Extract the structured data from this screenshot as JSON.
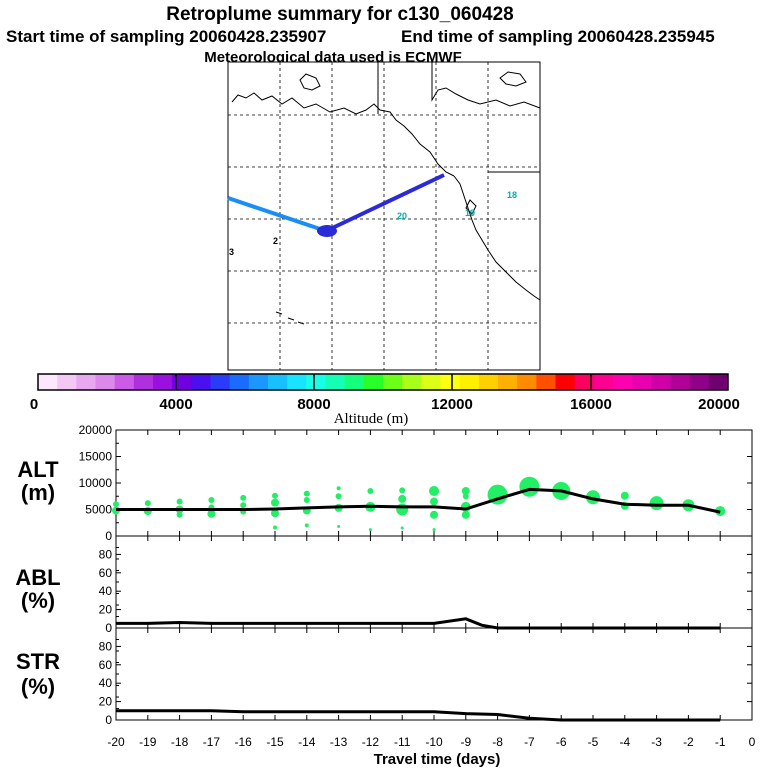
{
  "header": {
    "title": "Retroplume summary for c130_060428",
    "start_label": "Start time of sampling 20060428.235907",
    "end_label": "End time of sampling 20060428.235945",
    "met_label": "Meteorological data used is ECMWF"
  },
  "colorbar": {
    "label": "Altitude (m)",
    "ticks": [
      "0",
      "4000",
      "8000",
      "12000",
      "16000",
      "20000"
    ],
    "colors": [
      "#fce8fc",
      "#f4c8f4",
      "#e8a8f0",
      "#dc88ec",
      "#cc5ce8",
      "#b030e0",
      "#9a10e0",
      "#7000e0",
      "#4a10f0",
      "#2a3cf8",
      "#1a6cff",
      "#1a98ff",
      "#18c0ff",
      "#18e4ff",
      "#18ffe8",
      "#14ffb4",
      "#14ff7c",
      "#28ff28",
      "#6cff18",
      "#a8ff18",
      "#dcff18",
      "#ffff10",
      "#fff000",
      "#ffd000",
      "#ffb000",
      "#ff8c00",
      "#ff5000",
      "#ff0000",
      "#ff0060",
      "#ff0090",
      "#ff00b0",
      "#e800b0",
      "#d000a8",
      "#b00098",
      "#900088",
      "#700070"
    ]
  },
  "map": {
    "day_markers": [
      "18",
      "19",
      "20",
      "2",
      "3"
    ]
  },
  "chart_data": [
    {
      "type": "scatter",
      "panel": "ALT",
      "ylabel": "ALT (m)",
      "ylim": [
        0,
        20000
      ],
      "yticks": [
        "0",
        "5000",
        "10000",
        "15000",
        "20000"
      ],
      "xlim": [
        -20,
        0
      ],
      "line": {
        "x": [
          -20,
          -19,
          -18,
          -17,
          -16,
          -15,
          -14,
          -13,
          -12,
          -11,
          -10,
          -9,
          -8,
          -7,
          -6,
          -5,
          -4,
          -3,
          -2,
          -1
        ],
        "y": [
          5000,
          5000,
          5000,
          5000,
          5000,
          5100,
          5300,
          5500,
          5600,
          5500,
          5500,
          5100,
          7000,
          8800,
          8500,
          7000,
          6000,
          5800,
          5800,
          4500
        ]
      },
      "points": [
        {
          "x": -20,
          "y": 6000,
          "s": 3
        },
        {
          "x": -20,
          "y": 4800,
          "s": 4
        },
        {
          "x": -19,
          "y": 6200,
          "s": 3
        },
        {
          "x": -19,
          "y": 4700,
          "s": 4
        },
        {
          "x": -18,
          "y": 6500,
          "s": 3
        },
        {
          "x": -18,
          "y": 5000,
          "s": 4
        },
        {
          "x": -18,
          "y": 4000,
          "s": 3
        },
        {
          "x": -17,
          "y": 6800,
          "s": 3
        },
        {
          "x": -17,
          "y": 5400,
          "s": 3
        },
        {
          "x": -17,
          "y": 4200,
          "s": 4
        },
        {
          "x": -16,
          "y": 7200,
          "s": 3
        },
        {
          "x": -16,
          "y": 5800,
          "s": 3
        },
        {
          "x": -16,
          "y": 4600,
          "s": 3
        },
        {
          "x": -15,
          "y": 7600,
          "s": 3
        },
        {
          "x": -15,
          "y": 6300,
          "s": 4
        },
        {
          "x": -15,
          "y": 4300,
          "s": 4
        },
        {
          "x": -15,
          "y": 1600,
          "s": 2
        },
        {
          "x": -14,
          "y": 8000,
          "s": 3
        },
        {
          "x": -14,
          "y": 6800,
          "s": 3
        },
        {
          "x": -14,
          "y": 4800,
          "s": 4
        },
        {
          "x": -14,
          "y": 2000,
          "s": 2
        },
        {
          "x": -13,
          "y": 9000,
          "s": 2
        },
        {
          "x": -13,
          "y": 7500,
          "s": 3
        },
        {
          "x": -13,
          "y": 5300,
          "s": 4
        },
        {
          "x": -13,
          "y": 1800,
          "s": 1.5
        },
        {
          "x": -12,
          "y": 8500,
          "s": 3
        },
        {
          "x": -12,
          "y": 5500,
          "s": 5
        },
        {
          "x": -12,
          "y": 1200,
          "s": 1.5
        },
        {
          "x": -11,
          "y": 8600,
          "s": 3
        },
        {
          "x": -11,
          "y": 7000,
          "s": 4
        },
        {
          "x": -11,
          "y": 5000,
          "s": 6
        },
        {
          "x": -11,
          "y": 1500,
          "s": 1.5
        },
        {
          "x": -10,
          "y": 8500,
          "s": 5
        },
        {
          "x": -10,
          "y": 6500,
          "s": 4
        },
        {
          "x": -10,
          "y": 4000,
          "s": 4
        },
        {
          "x": -10,
          "y": 1200,
          "s": 1.5
        },
        {
          "x": -9,
          "y": 8500,
          "s": 4
        },
        {
          "x": -9,
          "y": 7500,
          "s": 3
        },
        {
          "x": -9,
          "y": 5500,
          "s": 5
        },
        {
          "x": -9,
          "y": 4000,
          "s": 4
        },
        {
          "x": -8,
          "y": 7800,
          "s": 10
        },
        {
          "x": -7,
          "y": 9300,
          "s": 10
        },
        {
          "x": -6,
          "y": 8500,
          "s": 9
        },
        {
          "x": -5,
          "y": 7300,
          "s": 7
        },
        {
          "x": -4,
          "y": 7600,
          "s": 4
        },
        {
          "x": -4,
          "y": 5700,
          "s": 4
        },
        {
          "x": -3,
          "y": 6200,
          "s": 7
        },
        {
          "x": -2,
          "y": 5800,
          "s": 6
        },
        {
          "x": -1,
          "y": 4700,
          "s": 5
        }
      ]
    },
    {
      "type": "line",
      "panel": "ABL",
      "ylabel": "ABL (%)",
      "ylim": [
        0,
        100
      ],
      "yticks": [
        "0",
        "20",
        "40",
        "60",
        "80"
      ],
      "x": [
        -20,
        -19,
        -18,
        -17,
        -16,
        -15,
        -14,
        -13,
        -12,
        -11,
        -10,
        -9,
        -8.5,
        -8,
        -7,
        -6,
        -5,
        -4,
        -3,
        -2,
        -1
      ],
      "y": [
        5,
        5,
        6,
        5,
        5,
        5,
        5,
        5,
        5,
        5,
        5,
        10,
        3,
        0,
        0,
        0,
        0,
        0,
        0,
        0,
        0
      ]
    },
    {
      "type": "line",
      "panel": "STR",
      "ylabel": "STR (%)",
      "ylim": [
        0,
        100
      ],
      "yticks": [
        "0",
        "20",
        "40",
        "60",
        "80"
      ],
      "x": [
        -20,
        -19,
        -18,
        -17,
        -16,
        -15,
        -14,
        -13,
        -12,
        -11,
        -10,
        -9,
        -8,
        -7,
        -6,
        -5,
        -4,
        -3,
        -2,
        -1
      ],
      "y": [
        10,
        10,
        10,
        10,
        9,
        9,
        9,
        9,
        9,
        9,
        9,
        7,
        6,
        2,
        0,
        0,
        0,
        0,
        0,
        0
      ],
      "xlabel": "Travel time (days)",
      "xticks": [
        "-20",
        "-19",
        "-18",
        "-17",
        "-16",
        "-15",
        "-14",
        "-13",
        "-12",
        "-11",
        "-10",
        "-9",
        "-8",
        "-7",
        "-6",
        "-5",
        "-4",
        "-3",
        "-2",
        "-1",
        "0"
      ]
    }
  ],
  "panels": {
    "alt_label": [
      "ALT",
      "(m)"
    ],
    "abl_label": [
      "ABL",
      "(%)"
    ],
    "str_label": [
      "STR",
      "(%)"
    ]
  }
}
